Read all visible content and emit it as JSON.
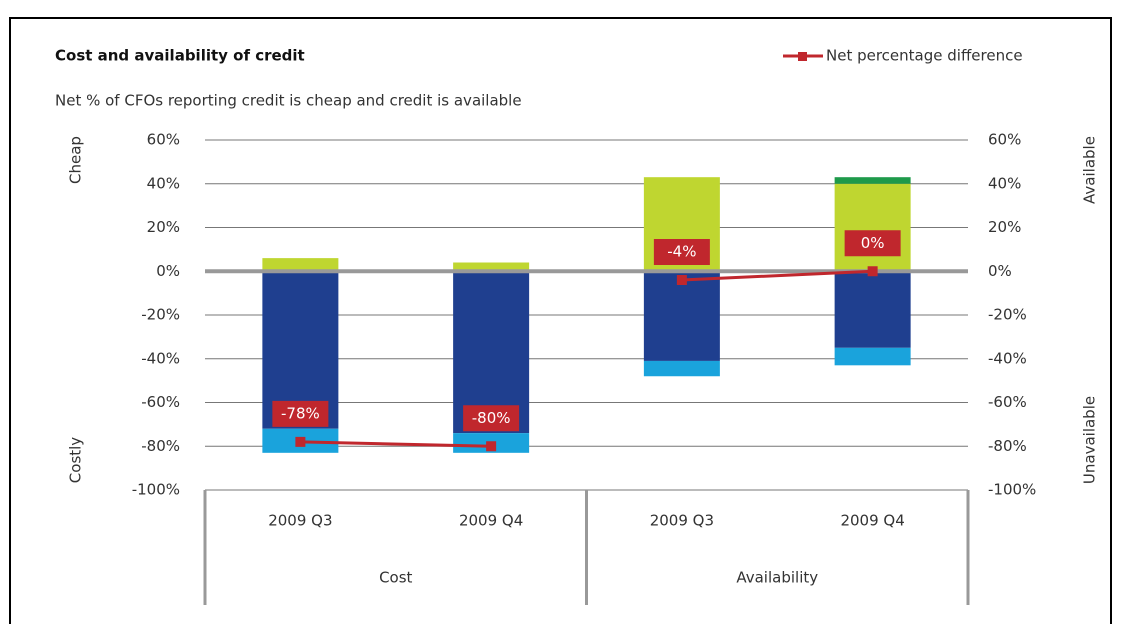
{
  "chart_data": {
    "type": "stacked_bar_line",
    "title": "Cost and availability of credit",
    "subtitle": "Net % of CFOs reporting credit is cheap and credit is available",
    "side_labels": {
      "top_left": "Cheap",
      "bottom_left": "Costly",
      "top_right": "Available",
      "bottom_right": "Unavailable"
    },
    "groups": [
      {
        "name": "Cost",
        "categories": [
          "2009 Q3",
          "2009 Q4"
        ]
      },
      {
        "name": "Availability",
        "categories": [
          "2009 Q3",
          "2009 Q4"
        ]
      }
    ],
    "series": [
      {
        "color": "#bfd630",
        "values": [
          6,
          4,
          43,
          40
        ]
      },
      {
        "color": "#1e9a4a",
        "values": [
          0,
          0,
          0,
          3
        ]
      },
      {
        "color": "#1f3f8f",
        "values": [
          -72,
          -74,
          -41,
          -35
        ]
      },
      {
        "color": "#1aa3dc",
        "values": [
          -11,
          -9,
          -7,
          -8
        ]
      }
    ],
    "line": {
      "name": "Net percentage difference",
      "color": "#c0272d",
      "values": [
        -78,
        -80,
        -4,
        0
      ],
      "value_labels": [
        "-78%",
        "-80%",
        "-4%",
        "0%"
      ]
    },
    "ylim": [
      -100,
      60
    ],
    "yticks": [
      {
        "value": -100,
        "label": "-100%"
      },
      {
        "value": -80,
        "label": "-80%"
      },
      {
        "value": -60,
        "label": "-60%"
      },
      {
        "value": -40,
        "label": "-40%"
      },
      {
        "value": -20,
        "label": "-20%"
      },
      {
        "value": 0,
        "label": "0%"
      },
      {
        "value": 20,
        "label": "20%"
      },
      {
        "value": 40,
        "label": "40%"
      },
      {
        "value": 60,
        "label": "60%"
      }
    ],
    "grid": true
  }
}
